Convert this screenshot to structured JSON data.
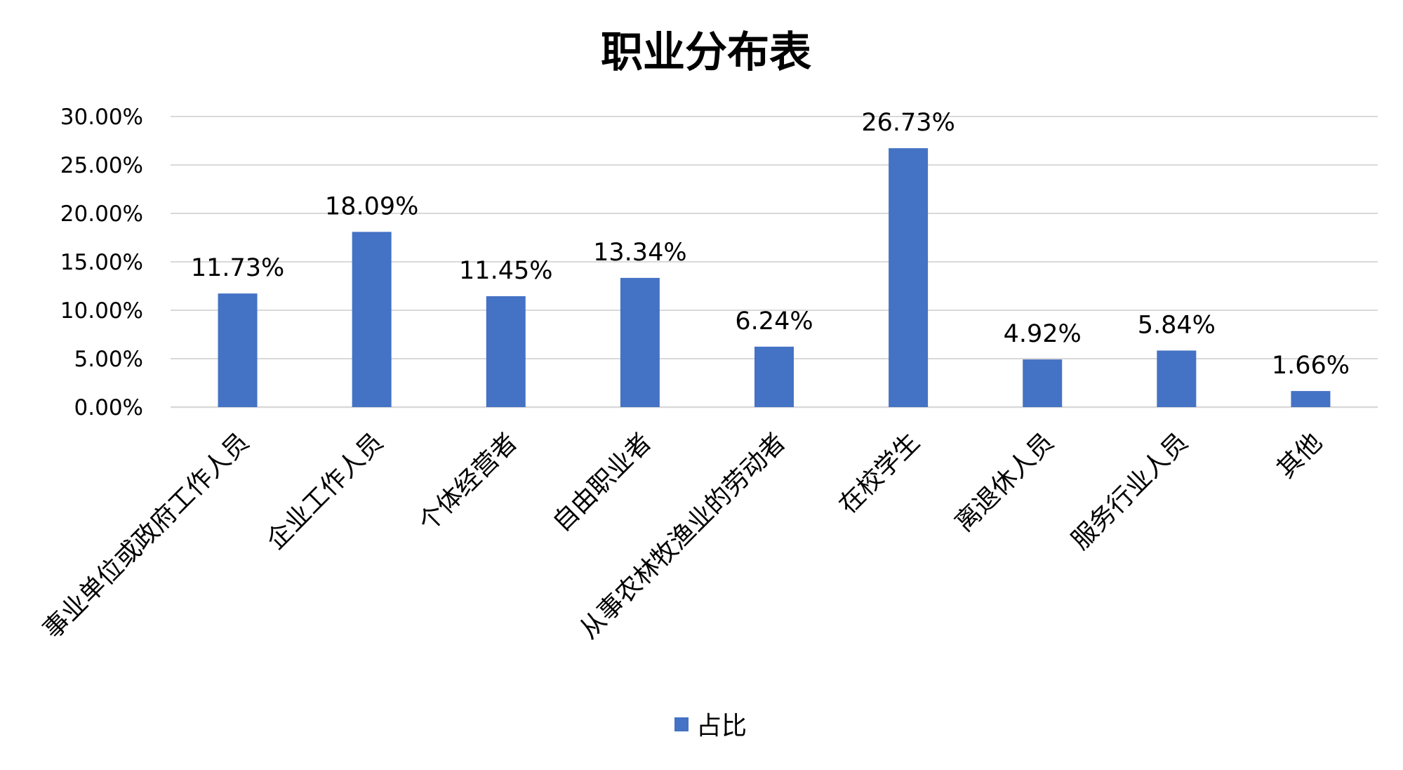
{
  "chart_data": {
    "type": "bar",
    "title": "职业分布表",
    "categories": [
      "事业单位或政府工作人员",
      "企业工作人员",
      "个体经营者",
      "自由职业者",
      "从事农林牧渔业的劳动者",
      "在校学生",
      "离退休人员",
      "服务行业人员",
      "其他"
    ],
    "series": [
      {
        "name": "占比",
        "values": [
          11.73,
          18.09,
          11.45,
          13.34,
          6.24,
          26.73,
          4.92,
          5.84,
          1.66
        ],
        "data_labels": [
          "11.73%",
          "18.09%",
          "11.45%",
          "13.34%",
          "6.24%",
          "26.73%",
          "4.92%",
          "5.84%",
          "1.66%"
        ],
        "color": "#4472C4"
      }
    ],
    "yticks": [
      "0.00%",
      "5.00%",
      "10.00%",
      "15.00%",
      "20.00%",
      "25.00%",
      "30.00%"
    ],
    "ylim": [
      0,
      30
    ],
    "xlabel": "",
    "ylabel": "",
    "grid": true,
    "legend_position": "bottom"
  }
}
